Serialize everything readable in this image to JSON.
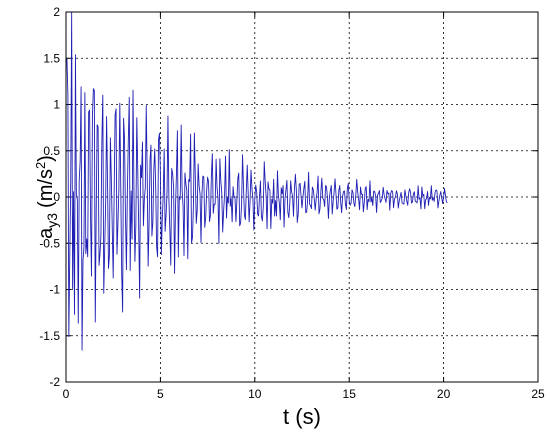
{
  "chart_data": {
    "type": "line",
    "title": "",
    "xlabel": "t (s)",
    "ylabel": {
      "base": "a",
      "subscript": "y3",
      "unit_prefix": "(m/s",
      "unit_sup": "2",
      "unit_suffix": ")"
    },
    "xlim": [
      0,
      25
    ],
    "ylim": [
      -2,
      2
    ],
    "x_ticks": [
      "0",
      "5",
      "10",
      "15",
      "20",
      "25"
    ],
    "y_ticks": [
      "2",
      "1.5",
      "1",
      "0.5",
      "0",
      "-0.5",
      "-1",
      "-1.5",
      "-2"
    ],
    "grid": true,
    "legend": "none",
    "series": [
      {
        "color": "#1f1fb4",
        "signal": {
          "t_start": 0.05,
          "t_end": 20.2,
          "sample_step": 0.05,
          "peak_amplitude": 1.9,
          "residual_amplitude": 0.05,
          "decay_time_constant": 5.5,
          "dominant_frequency_hz": 4.3
        }
      }
    ]
  }
}
